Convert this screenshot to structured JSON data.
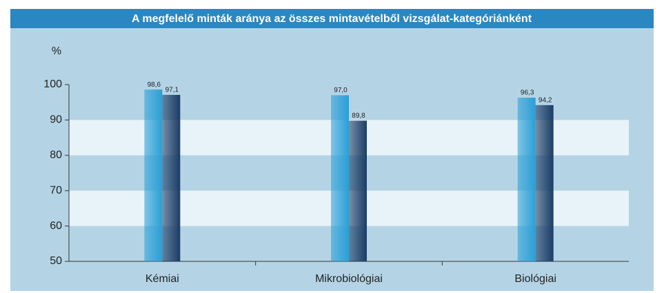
{
  "chart_data": {
    "type": "bar",
    "title": "A megfelelő minták aránya az összes mintavételből vizsgálat-kategóriánként",
    "y_label": "%",
    "categories": [
      "Kémiai",
      "Mikrobiológiai",
      "Biológiai"
    ],
    "series": [
      {
        "color": "#2a9fd6",
        "values": [
          98.6,
          97.0,
          96.3
        ],
        "value_labels": [
          "98,6",
          "97,0",
          "96,3"
        ]
      },
      {
        "color": "#1b3d66",
        "values": [
          97.1,
          89.8,
          94.2
        ],
        "value_labels": [
          "97,1",
          "89,8",
          "94,2"
        ]
      }
    ],
    "ylim": [
      50,
      100
    ],
    "yticks": [
      50,
      60,
      70,
      80,
      90,
      100
    ],
    "bands": true
  }
}
